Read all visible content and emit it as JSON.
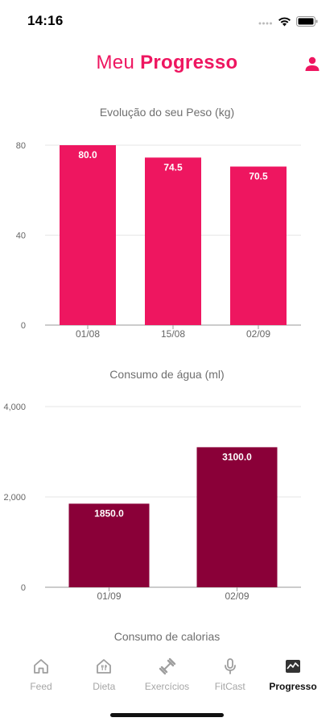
{
  "status_bar": {
    "time": "14:16"
  },
  "header": {
    "title_light": "Meu ",
    "title_bold": "Progresso",
    "profile_icon": "user-icon"
  },
  "colors": {
    "accent": "#ee1660",
    "water": "#8a0038",
    "grid": "#e6e6e6",
    "axis": "#9a9a9a"
  },
  "weight_chart": {
    "title": "Evolução do seu Peso (kg)",
    "chart_data": {
      "type": "bar",
      "categories": [
        "01/08",
        "15/08",
        "02/09"
      ],
      "values": [
        80.0,
        74.5,
        70.5
      ],
      "value_labels": [
        "80.0",
        "74.5",
        "70.5"
      ],
      "yticks": [
        "80",
        "40",
        "0"
      ],
      "ytick_values": [
        80,
        40,
        0
      ],
      "ylim": [
        0,
        80
      ],
      "color": "#ee1660",
      "grid": true
    }
  },
  "water_chart": {
    "title": "Consumo de água (ml)",
    "chart_data": {
      "type": "bar",
      "categories": [
        "01/09",
        "02/09"
      ],
      "values": [
        1850.0,
        3100.0
      ],
      "value_labels": [
        "1850.0",
        "3100.0"
      ],
      "yticks": [
        "4,000",
        "2,000",
        "0"
      ],
      "ytick_values": [
        4000,
        2000,
        0
      ],
      "ylim": [
        0,
        4000
      ],
      "color": "#8a0038",
      "grid": true
    }
  },
  "calories_section": {
    "title": "Consumo de calorias"
  },
  "bottom_nav": {
    "items": [
      {
        "label": "Feed",
        "icon": "home-icon",
        "active": false
      },
      {
        "label": "Dieta",
        "icon": "diet-icon",
        "active": false
      },
      {
        "label": "Exercícios",
        "icon": "exercise-icon",
        "active": false
      },
      {
        "label": "FitCast",
        "icon": "microphone-icon",
        "active": false
      },
      {
        "label": "Progresso",
        "icon": "progress-chart-icon",
        "active": true
      }
    ]
  }
}
